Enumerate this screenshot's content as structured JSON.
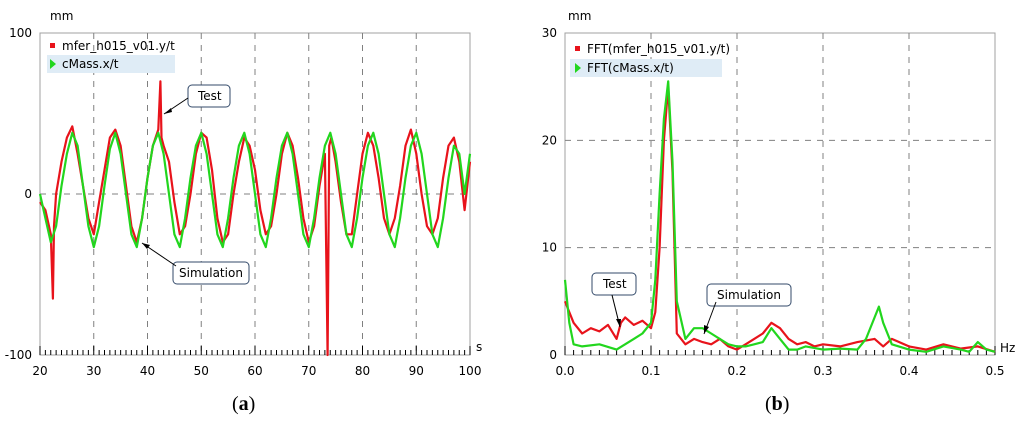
{
  "panels": [
    {
      "y_unit": "mm",
      "x_unit": "s",
      "caption_open": "(",
      "caption_letter": "a",
      "caption_close": ")",
      "legend": [
        "mfer_h015_v01.y/t",
        "cMass.x/t"
      ],
      "annotations": [
        "Test",
        "Simulation"
      ]
    },
    {
      "y_unit": "mm",
      "x_unit": "Hz",
      "caption_open": "(",
      "caption_letter": "b",
      "caption_close": ")",
      "legend": [
        "FFT(mfer_h015_v01.y/t)",
        "FFT(cMass.x/t)"
      ],
      "annotations": [
        "Test",
        "Simulation"
      ]
    }
  ],
  "colors": {
    "test": "#e8131b",
    "simulation": "#22d61e",
    "grid": "#808080"
  },
  "chart_data": [
    {
      "type": "line",
      "xlim": [
        20,
        100
      ],
      "ylim": [
        -100,
        100
      ],
      "x_ticks": [
        20,
        30,
        40,
        50,
        60,
        70,
        80,
        90,
        100
      ],
      "y_ticks": [
        -100,
        0,
        100
      ],
      "series": [
        {
          "name": "mfer_h015_v01.y/t",
          "x": [
            20,
            21,
            22,
            22.4,
            22.6,
            23,
            24,
            25,
            26,
            27,
            28,
            29,
            30,
            31,
            32,
            33,
            34,
            35,
            36,
            37,
            38,
            39,
            40,
            41,
            42,
            42.4,
            42.6,
            43,
            44,
            45,
            46,
            47,
            48,
            49,
            50,
            51,
            52,
            53,
            54,
            55,
            56,
            57,
            58,
            59,
            60,
            61,
            62,
            63,
            64,
            65,
            66,
            67,
            68,
            69,
            70,
            71,
            72,
            73,
            73.5,
            73.8,
            74.2,
            75,
            76,
            77,
            78,
            79,
            80,
            81,
            82,
            83,
            84,
            85,
            86,
            87,
            88,
            89,
            90,
            91,
            92,
            93,
            94,
            95,
            96,
            97,
            98,
            99,
            100
          ],
          "y": [
            -5,
            -10,
            -25,
            -65,
            -20,
            0,
            20,
            35,
            42,
            25,
            5,
            -15,
            -25,
            -5,
            15,
            35,
            40,
            30,
            5,
            -20,
            -30,
            -15,
            10,
            30,
            40,
            70,
            35,
            30,
            20,
            -5,
            -25,
            -20,
            0,
            25,
            38,
            35,
            15,
            -15,
            -30,
            -25,
            0,
            20,
            35,
            30,
            15,
            -10,
            -25,
            -20,
            0,
            25,
            38,
            30,
            10,
            -15,
            -30,
            -20,
            5,
            25,
            -100,
            30,
            35,
            20,
            -5,
            -25,
            -25,
            0,
            25,
            38,
            30,
            10,
            -15,
            -25,
            -15,
            5,
            30,
            40,
            25,
            0,
            -20,
            -25,
            -15,
            10,
            30,
            35,
            20,
            -10,
            20
          ]
        },
        {
          "name": "cMass.x/t",
          "x": [
            20,
            21,
            22,
            23,
            24,
            25,
            26,
            27,
            28,
            29,
            30,
            31,
            32,
            33,
            34,
            35,
            36,
            37,
            38,
            39,
            40,
            41,
            42,
            43,
            44,
            45,
            46,
            47,
            48,
            49,
            50,
            51,
            52,
            53,
            54,
            55,
            56,
            57,
            58,
            59,
            60,
            61,
            62,
            63,
            64,
            65,
            66,
            67,
            68,
            69,
            70,
            71,
            72,
            73,
            74,
            75,
            76,
            77,
            78,
            79,
            80,
            81,
            82,
            83,
            84,
            85,
            86,
            87,
            88,
            89,
            90,
            91,
            92,
            93,
            94,
            95,
            96,
            97,
            98,
            99,
            100
          ],
          "y": [
            0,
            -15,
            -30,
            -20,
            5,
            25,
            38,
            30,
            5,
            -20,
            -33,
            -20,
            5,
            28,
            38,
            25,
            0,
            -25,
            -33,
            -15,
            10,
            30,
            38,
            25,
            0,
            -25,
            -33,
            -15,
            10,
            30,
            38,
            25,
            0,
            -25,
            -33,
            -15,
            10,
            30,
            38,
            25,
            0,
            -25,
            -33,
            -15,
            10,
            30,
            38,
            25,
            0,
            -25,
            -33,
            -15,
            10,
            30,
            38,
            25,
            0,
            -25,
            -33,
            -15,
            10,
            30,
            38,
            25,
            0,
            -25,
            -33,
            -15,
            10,
            30,
            38,
            25,
            0,
            -25,
            -33,
            -15,
            10,
            30,
            25,
            0,
            25
          ]
        }
      ]
    },
    {
      "type": "line",
      "xlim": [
        0,
        0.5
      ],
      "ylim": [
        0,
        30
      ],
      "x_ticks": [
        0.0,
        0.1,
        0.2,
        0.3,
        0.4,
        0.5
      ],
      "x_tick_labels": [
        "0.0",
        "0.1",
        "0.2",
        "0.3",
        "0.4",
        "0.5"
      ],
      "y_ticks": [
        0,
        10,
        20,
        30
      ],
      "series": [
        {
          "name": "FFT(mfer_h015_v01.y/t)",
          "x": [
            0,
            0.005,
            0.01,
            0.02,
            0.03,
            0.04,
            0.05,
            0.06,
            0.065,
            0.07,
            0.08,
            0.09,
            0.1,
            0.105,
            0.11,
            0.115,
            0.12,
            0.125,
            0.13,
            0.14,
            0.15,
            0.16,
            0.17,
            0.18,
            0.19,
            0.2,
            0.21,
            0.22,
            0.23,
            0.24,
            0.25,
            0.26,
            0.27,
            0.28,
            0.29,
            0.3,
            0.32,
            0.34,
            0.36,
            0.37,
            0.38,
            0.4,
            0.42,
            0.44,
            0.46,
            0.48,
            0.5
          ],
          "y": [
            5,
            4,
            3,
            2,
            2.5,
            2.2,
            2.8,
            1.5,
            3,
            3.5,
            2.8,
            3.2,
            2.5,
            4,
            10,
            20,
            25,
            17,
            2,
            1,
            1.5,
            1.2,
            1,
            1.5,
            0.8,
            0.5,
            1,
            1.5,
            2,
            3,
            2.5,
            1.5,
            1,
            1.2,
            0.8,
            1,
            0.8,
            1.2,
            1.5,
            0.8,
            1.5,
            0.8,
            0.5,
            1,
            0.6,
            0.8,
            0.3
          ]
        },
        {
          "name": "FFT(cMass.x/t)",
          "x": [
            0,
            0.005,
            0.01,
            0.02,
            0.04,
            0.06,
            0.08,
            0.09,
            0.1,
            0.105,
            0.11,
            0.115,
            0.12,
            0.125,
            0.13,
            0.14,
            0.15,
            0.16,
            0.17,
            0.18,
            0.19,
            0.2,
            0.21,
            0.22,
            0.23,
            0.24,
            0.25,
            0.26,
            0.27,
            0.28,
            0.3,
            0.32,
            0.34,
            0.35,
            0.36,
            0.365,
            0.37,
            0.38,
            0.4,
            0.42,
            0.44,
            0.46,
            0.47,
            0.48,
            0.49,
            0.5
          ],
          "y": [
            7,
            3,
            1,
            0.8,
            1,
            0.5,
            1.5,
            2,
            3,
            7,
            15,
            22,
            25.5,
            18,
            5,
            1.5,
            2.5,
            2.5,
            2,
            1.5,
            1,
            0.8,
            0.8,
            1,
            1.2,
            2.5,
            1.5,
            0.5,
            0.5,
            0.8,
            0.5,
            0.6,
            0.5,
            1.5,
            3.5,
            4.5,
            3,
            1,
            0.5,
            0.3,
            0.8,
            0.5,
            0.3,
            1.2,
            0.5,
            0.3
          ]
        }
      ]
    }
  ]
}
